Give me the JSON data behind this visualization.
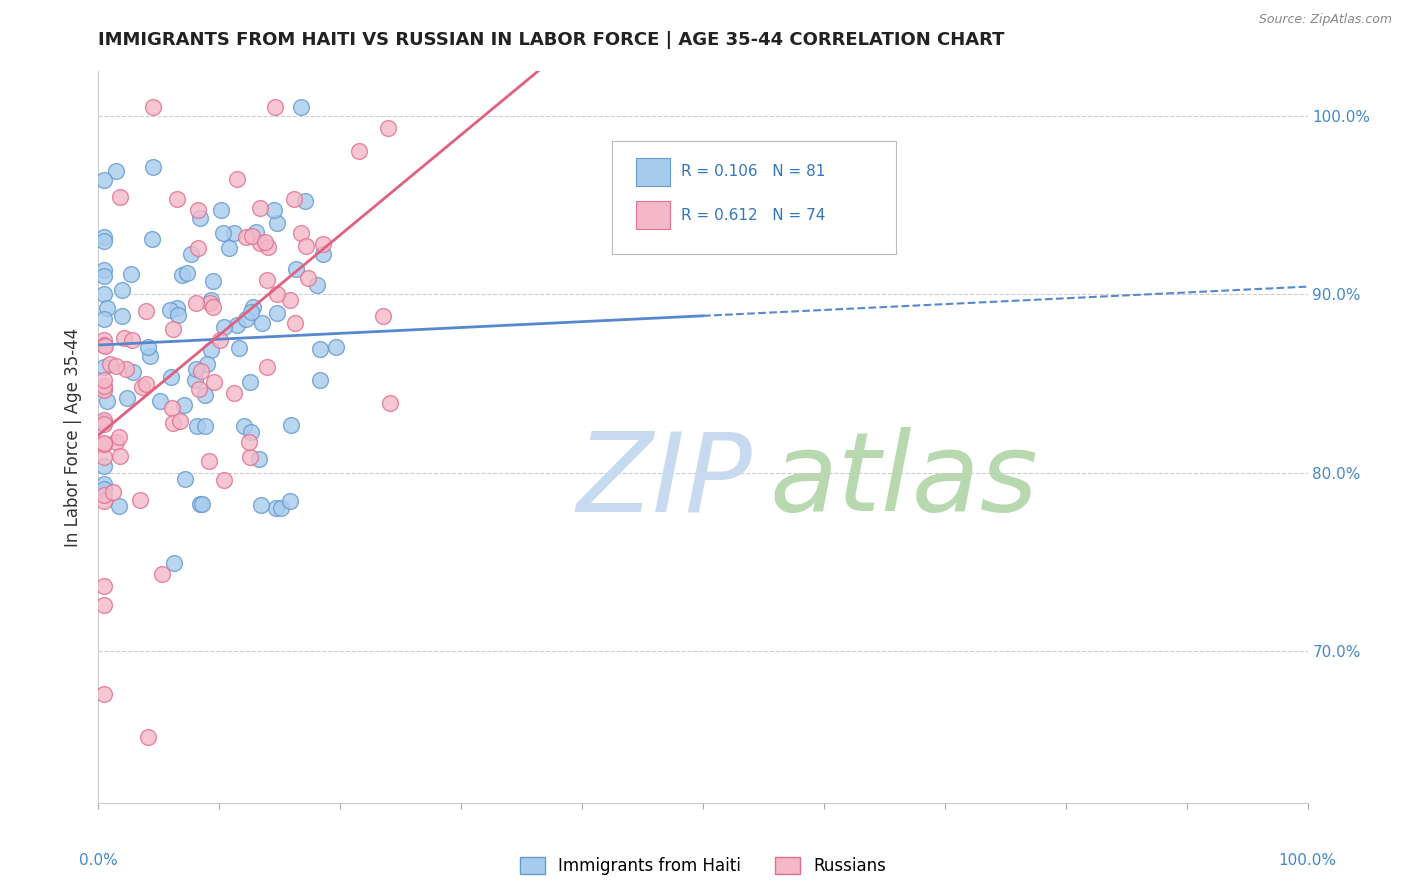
{
  "title": "IMMIGRANTS FROM HAITI VS RUSSIAN IN LABOR FORCE | AGE 35-44 CORRELATION CHART",
  "source": "Source: ZipAtlas.com",
  "ylabel": "In Labor Force | Age 35-44",
  "y_tick_labels": [
    "70.0%",
    "80.0%",
    "90.0%",
    "100.0%"
  ],
  "y_tick_values": [
    0.7,
    0.8,
    0.9,
    1.0
  ],
  "x_range": [
    0.0,
    1.0
  ],
  "y_range": [
    0.615,
    1.025
  ],
  "legend_haiti_label": "Immigrants from Haiti",
  "legend_russian_label": "Russians",
  "legend_haiti_R": "R = 0.106",
  "legend_haiti_N": "N = 81",
  "legend_russian_R": "R = 0.612",
  "legend_russian_N": "N = 74",
  "haiti_color_fill": "#a8ccee",
  "haiti_color_edge": "#6699cc",
  "russian_color_fill": "#f5b8c8",
  "russian_color_edge": "#e07090",
  "line_haiti_color": "#5588cc",
  "line_russian_color": "#e06080",
  "watermark_zip_color": "#c8daf0",
  "watermark_atlas_color": "#b8d8b0"
}
